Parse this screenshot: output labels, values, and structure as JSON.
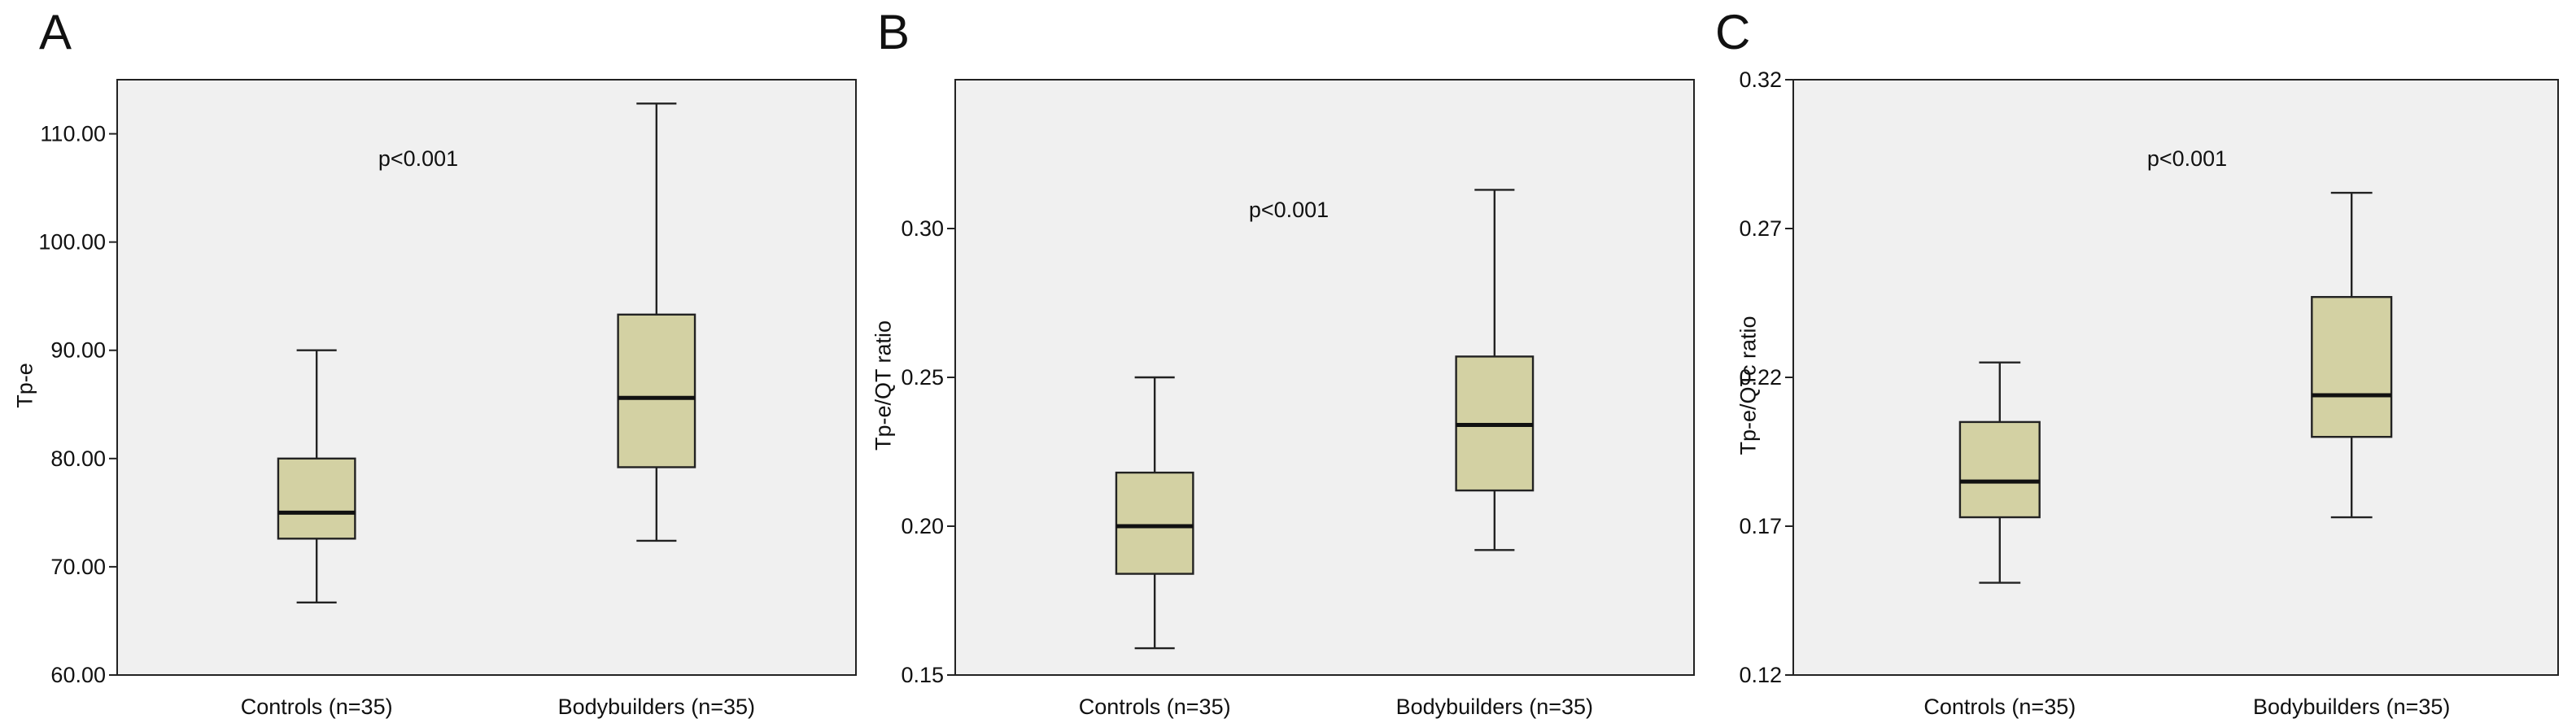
{
  "colors": {
    "box_fill": "#d3d1a3",
    "plot_bg": "#f0f0f0"
  },
  "chart_data": [
    {
      "panel": "A",
      "type": "box",
      "ylabel": "Tp-e",
      "annotation": "p<0.001",
      "ylim": [
        60,
        115
      ],
      "yticks": [
        60,
        70,
        80,
        90,
        100,
        110
      ],
      "ytick_labels": [
        "60.00",
        "70.00",
        "80.00",
        "90.00",
        "100.00",
        "110.00"
      ],
      "categories": [
        "Controls (n=35)",
        "Bodybuilders (n=35)"
      ],
      "boxes": [
        {
          "min": 66.7,
          "q1": 72.6,
          "median": 75.0,
          "q3": 80.0,
          "max": 90.0
        },
        {
          "min": 72.4,
          "q1": 79.2,
          "median": 85.6,
          "q3": 93.3,
          "max": 112.8
        }
      ]
    },
    {
      "panel": "B",
      "type": "box",
      "ylabel": "Tp-e/QT ratio",
      "annotation": "p<0.001",
      "ylim": [
        0.15,
        0.35
      ],
      "yticks": [
        0.15,
        0.2,
        0.25,
        0.3
      ],
      "ytick_labels": [
        "0.15",
        "0.20",
        "0.25",
        "0.30"
      ],
      "categories": [
        "Controls (n=35)",
        "Bodybuilders (n=35)"
      ],
      "boxes": [
        {
          "min": 0.159,
          "q1": 0.184,
          "median": 0.2,
          "q3": 0.218,
          "max": 0.25
        },
        {
          "min": 0.192,
          "q1": 0.212,
          "median": 0.234,
          "q3": 0.257,
          "max": 0.313
        }
      ]
    },
    {
      "panel": "C",
      "type": "box",
      "ylabel": "Tp-e/QTc ratio",
      "annotation": "p<0.001",
      "ylim": [
        0.12,
        0.32
      ],
      "yticks": [
        0.12,
        0.17,
        0.22,
        0.27,
        0.32
      ],
      "ytick_labels": [
        "0.12",
        "0.17",
        "0.22",
        "0.27",
        "0.32"
      ],
      "categories": [
        "Controls (n=35)",
        "Bodybuilders (n=35)"
      ],
      "boxes": [
        {
          "min": 0.151,
          "q1": 0.173,
          "median": 0.185,
          "q3": 0.205,
          "max": 0.225
        },
        {
          "min": 0.173,
          "q1": 0.2,
          "median": 0.214,
          "q3": 0.247,
          "max": 0.282
        }
      ]
    }
  ]
}
